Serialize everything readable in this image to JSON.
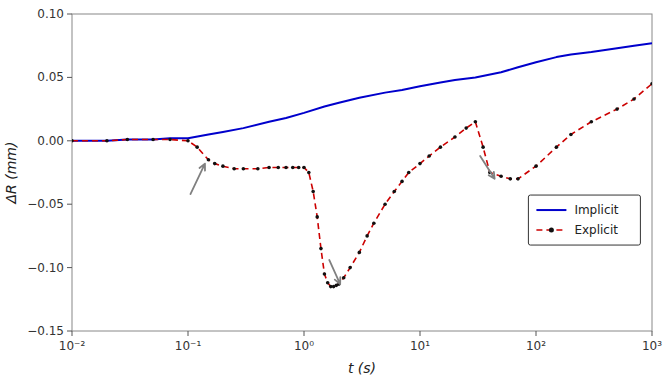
{
  "chart_data": {
    "type": "line",
    "xlabel": "t (s)",
    "ylabel": "ΔR (mm)",
    "log": "x",
    "grid": false,
    "legend": "right",
    "xlim": [
      0.01,
      1000
    ],
    "ylim": [
      -0.15,
      0.1
    ],
    "xticks": [
      {
        "value": 0.01,
        "label": "10⁻²"
      },
      {
        "value": 0.1,
        "label": "10⁻¹"
      },
      {
        "value": 1,
        "label": "10⁰"
      },
      {
        "value": 10,
        "label": "10¹"
      },
      {
        "value": 100,
        "label": "10²"
      },
      {
        "value": 1000,
        "label": "10³"
      }
    ],
    "yticks": [
      {
        "value": -0.15,
        "label": "−0.15"
      },
      {
        "value": -0.1,
        "label": "−0.10"
      },
      {
        "value": -0.05,
        "label": "−0.05"
      },
      {
        "value": 0,
        "label": "0.00"
      },
      {
        "value": 0.05,
        "label": "0.05"
      },
      {
        "value": 0.1,
        "label": "0.10"
      }
    ],
    "series": [
      {
        "name": "Implicit",
        "color": "#0000CC",
        "line_style": "solid",
        "x": [
          0.01,
          0.02,
          0.03,
          0.05,
          0.07,
          0.1,
          0.15,
          0.2,
          0.3,
          0.5,
          0.7,
          1.0,
          1.5,
          2.0,
          3.0,
          5.0,
          7.0,
          10.0,
          15.0,
          20.0,
          30.0,
          50.0,
          70.0,
          100.0,
          150.0,
          200.0,
          300.0,
          500.0,
          700.0,
          1000.0
        ],
        "values": [
          0.0,
          0.0,
          0.001,
          0.001,
          0.002,
          0.002,
          0.005,
          0.007,
          0.01,
          0.015,
          0.018,
          0.022,
          0.027,
          0.03,
          0.034,
          0.038,
          0.04,
          0.043,
          0.046,
          0.048,
          0.05,
          0.054,
          0.058,
          0.062,
          0.066,
          0.068,
          0.07,
          0.073,
          0.075,
          0.077
        ]
      },
      {
        "name": "Explicit",
        "color": "#CC0000",
        "line_style": "dashed",
        "marker": "dot",
        "x": [
          0.01,
          0.02,
          0.03,
          0.05,
          0.07,
          0.1,
          0.12,
          0.15,
          0.17,
          0.2,
          0.25,
          0.3,
          0.4,
          0.5,
          0.6,
          0.7,
          0.8,
          0.9,
          1.0,
          1.1,
          1.2,
          1.3,
          1.4,
          1.5,
          1.6,
          1.7,
          1.8,
          1.9,
          2.0,
          2.2,
          2.5,
          3.0,
          3.5,
          4.0,
          5.0,
          6.0,
          7.0,
          8.0,
          10.0,
          12.0,
          15.0,
          20.0,
          25.0,
          30.0,
          35.0,
          40.0,
          50.0,
          60.0,
          70.0,
          100.0,
          150.0,
          200.0,
          300.0,
          500.0,
          700.0,
          1000.0
        ],
        "values": [
          0.0,
          0.0,
          0.001,
          0.001,
          0.001,
          0.0,
          -0.005,
          -0.015,
          -0.018,
          -0.02,
          -0.022,
          -0.022,
          -0.022,
          -0.021,
          -0.021,
          -0.021,
          -0.021,
          -0.021,
          -0.021,
          -0.025,
          -0.04,
          -0.06,
          -0.085,
          -0.105,
          -0.112,
          -0.115,
          -0.115,
          -0.114,
          -0.113,
          -0.108,
          -0.1,
          -0.088,
          -0.075,
          -0.065,
          -0.05,
          -0.04,
          -0.032,
          -0.025,
          -0.018,
          -0.012,
          -0.005,
          0.003,
          0.01,
          0.015,
          -0.005,
          -0.025,
          -0.028,
          -0.03,
          -0.03,
          -0.02,
          -0.005,
          0.005,
          0.015,
          0.025,
          0.033,
          0.045
        ]
      }
    ],
    "arrows": [
      {
        "xy": [
          0.14,
          -0.018
        ],
        "xytext": [
          0.105,
          -0.042
        ],
        "color": "#808080"
      },
      {
        "xy": [
          2.05,
          -0.113
        ],
        "xytext": [
          1.65,
          -0.094
        ],
        "color": "#808080"
      },
      {
        "xy": [
          44,
          -0.03
        ],
        "xytext": [
          33,
          -0.012
        ],
        "color": "#808080"
      }
    ]
  }
}
